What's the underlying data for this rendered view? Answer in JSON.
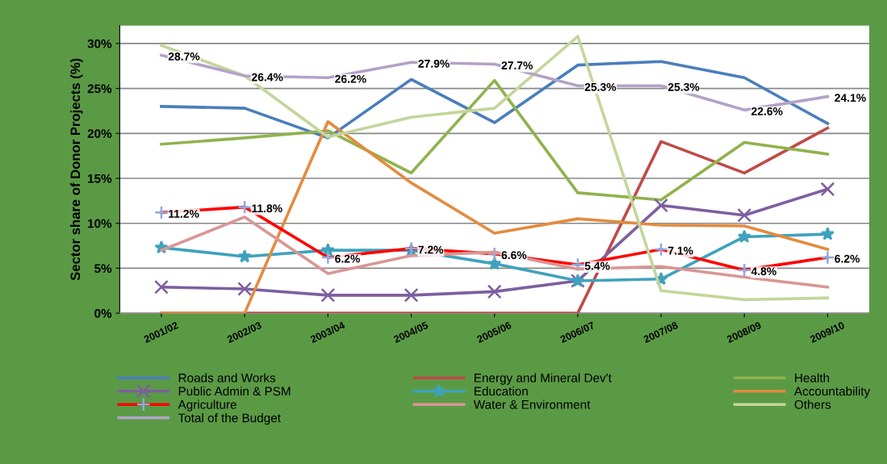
{
  "chart_data": {
    "type": "line",
    "ylabel": "Sector share of Donor Projects (%)",
    "categories": [
      "2001/02",
      "2002/03",
      "2003/04",
      "2004/05",
      "2005/06",
      "2006/07",
      "2007/08",
      "2008/09",
      "2009/10"
    ],
    "ylim": [
      0,
      32
    ],
    "yticks": [
      {
        "value": 0,
        "label": "0%"
      },
      {
        "value": 5,
        "label": "5%"
      },
      {
        "value": 10,
        "label": "10%"
      },
      {
        "value": 15,
        "label": "15%"
      },
      {
        "value": 20,
        "label": "20%"
      },
      {
        "value": 25,
        "label": "25%"
      },
      {
        "value": 30,
        "label": "30%"
      }
    ],
    "grid": "y",
    "legend": "bottom",
    "series": [
      {
        "name": "Roads and Works",
        "color": "#4a7ebb",
        "values": [
          23.0,
          22.8,
          19.5,
          26.0,
          21.2,
          27.6,
          28.0,
          26.2,
          21.1
        ]
      },
      {
        "name": "Energy and Mineral Dev't",
        "color": "#be4b48",
        "values": [
          0,
          0,
          0,
          0,
          0,
          0,
          19.1,
          15.6,
          20.6
        ]
      },
      {
        "name": "Health",
        "color": "#8fb34c",
        "values": [
          18.8,
          19.5,
          20.3,
          15.6,
          25.9,
          13.4,
          12.6,
          19.0,
          17.7
        ]
      },
      {
        "name": "Public Admin & PSM",
        "color": "#7d5fa0",
        "marker": "cross",
        "values": [
          2.9,
          2.7,
          2.0,
          2.0,
          2.4,
          3.6,
          12.0,
          10.9,
          13.8
        ]
      },
      {
        "name": "Education",
        "color": "#3fa2bd",
        "marker": "star",
        "values": [
          7.3,
          6.3,
          7.0,
          7.0,
          5.5,
          3.6,
          3.8,
          8.5,
          8.8
        ]
      },
      {
        "name": "Accountability",
        "color": "#e38b3e",
        "values": [
          0,
          0,
          21.3,
          14.5,
          8.9,
          10.5,
          9.8,
          9.7,
          7.1
        ]
      },
      {
        "name": "Agriculture",
        "color": "#ff0000",
        "marker": "plus",
        "value_labels": [
          "11.2%",
          "11.8%",
          "6.2%",
          "7.2%",
          "6.6%",
          "5.4%",
          "7.1%",
          "4.8%",
          "6.2%"
        ],
        "values": [
          11.2,
          11.8,
          6.2,
          7.2,
          6.6,
          5.4,
          7.1,
          4.8,
          6.2
        ]
      },
      {
        "name": "Water & Environment",
        "color": "#d99694",
        "values": [
          7.0,
          10.7,
          4.4,
          6.4,
          6.8,
          4.9,
          5.2,
          4.0,
          2.9
        ]
      },
      {
        "name": "Others",
        "color": "#c3d69b",
        "values": [
          29.8,
          26.4,
          19.6,
          21.8,
          22.8,
          30.8,
          2.5,
          1.5,
          1.7
        ]
      },
      {
        "name": "Total of the Budget",
        "color": "#b3a2c7",
        "value_labels": [
          "28.7%",
          "26.4%",
          "26.2%",
          "27.9%",
          "27.7%",
          "25.3%",
          "25.3%",
          "22.6%",
          "24.1%"
        ],
        "values": [
          28.7,
          26.4,
          26.2,
          27.9,
          27.7,
          25.3,
          25.3,
          22.6,
          24.1
        ]
      }
    ]
  }
}
